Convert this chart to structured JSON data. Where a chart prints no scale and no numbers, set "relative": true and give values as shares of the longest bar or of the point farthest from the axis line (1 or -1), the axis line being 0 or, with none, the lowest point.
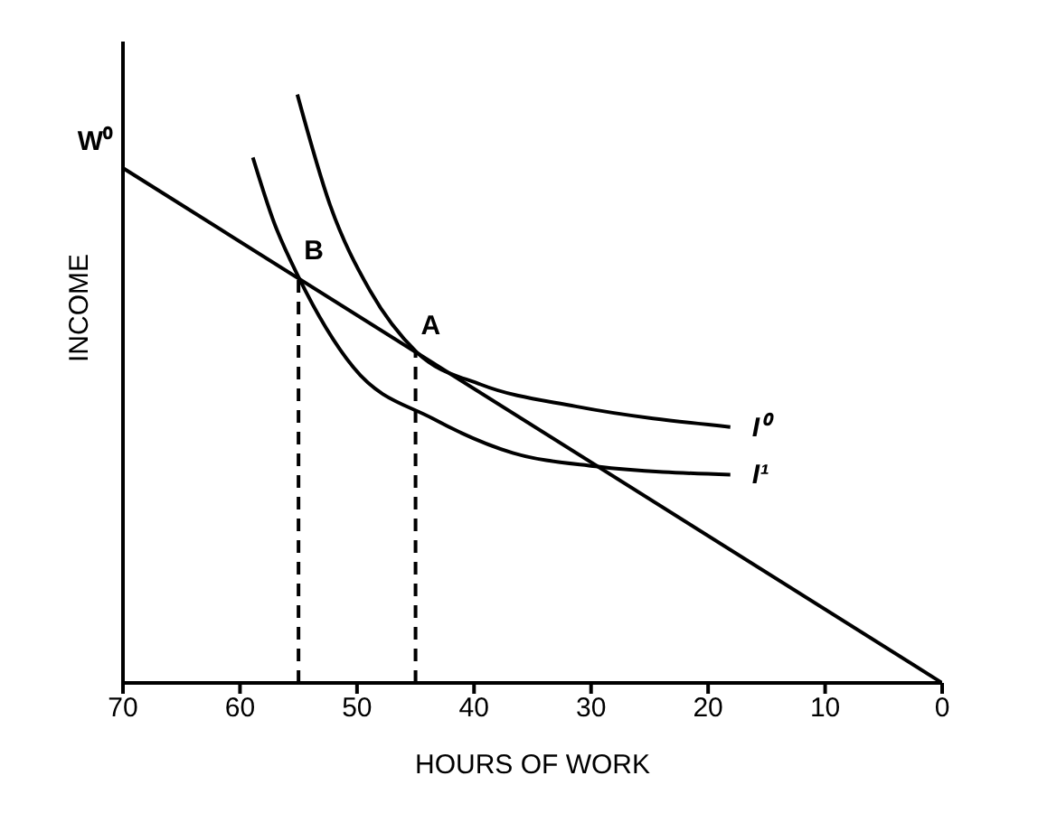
{
  "chart_data": {
    "type": "line",
    "relative": true,
    "xlabel": "HOURS OF WORK",
    "ylabel": "INCOME",
    "xlim": [
      70,
      0
    ],
    "xticks": [
      70,
      60,
      50,
      40,
      30,
      20,
      10,
      0
    ],
    "grid": false,
    "legend": false,
    "marker": "none",
    "line_style": "solid",
    "series": [
      {
        "color": "#000000",
        "x": [
          70,
          0
        ],
        "values": [
          0.875,
          0
        ]
      },
      {
        "name": "I⁰",
        "color": "#000000",
        "x": [
          55.1,
          52.3,
          48.9,
          44.9,
          39.4,
          31.3,
          18.1
        ],
        "values": [
          1.0,
          0.812,
          0.667,
          0.562,
          0.507,
          0.47,
          0.435
        ]
      },
      {
        "name": "I¹",
        "color": "#000000",
        "x": [
          58.9,
          57.1,
          55,
          50.3,
          43.5,
          36.7,
          29.6,
          18.1
        ],
        "values": [
          0.893,
          0.783,
          0.69,
          0.536,
          0.449,
          0.391,
          0.368,
          0.354
        ]
      },
      {
        "color": "#000000",
        "line_style": "dashed",
        "x": [
          55,
          55
        ],
        "values": [
          0,
          0.69
        ]
      },
      {
        "color": "#000000",
        "line_style": "dashed",
        "x": [
          45,
          45
        ],
        "values": [
          0,
          0.562
        ]
      }
    ],
    "annotations": [
      {
        "text": "W⁰",
        "x": 70,
        "y": 0.875
      },
      {
        "text": "B",
        "x": 55,
        "y": 0.69
      },
      {
        "text": "A",
        "x": 45,
        "y": 0.562
      }
    ]
  }
}
